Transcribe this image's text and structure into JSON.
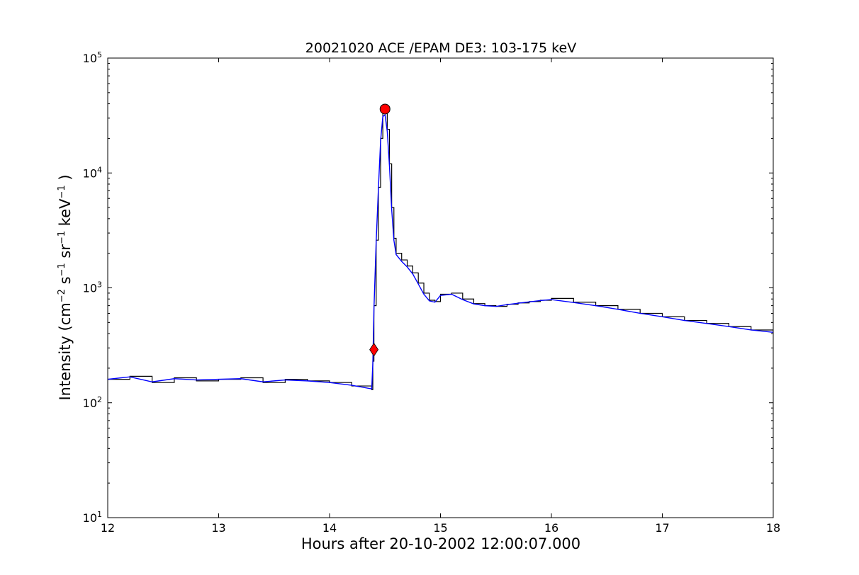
{
  "chart_data": {
    "type": "line",
    "title": "20021020 ACE /EPAM DE3: 103-175 keV",
    "xlabel": "Hours after 20-10-2002 12:00:07.000",
    "ylabel_parts": {
      "pre": "Intensity (cm",
      "sup1": "−2",
      "s": " s",
      "sup2": "−1",
      "sr": " sr",
      "sup3": "−1",
      "kev": " keV",
      "sup4": "−1",
      "post": " )"
    },
    "xlim": [
      12,
      18
    ],
    "ylim": [
      10,
      100000
    ],
    "yscale": "log",
    "x_ticks": [
      "12",
      "13",
      "14",
      "15",
      "16",
      "17",
      "18"
    ],
    "y_ticks": [
      {
        "base": "10",
        "exp": "1"
      },
      {
        "base": "10",
        "exp": "2"
      },
      {
        "base": "10",
        "exp": "3"
      },
      {
        "base": "10",
        "exp": "4"
      },
      {
        "base": "10",
        "exp": "5"
      }
    ],
    "grid": false,
    "series": [
      {
        "style": "steps",
        "color": "#000000",
        "x": [
          12.0,
          12.2,
          12.4,
          12.6,
          12.8,
          13.0,
          13.2,
          13.4,
          13.6,
          13.8,
          14.0,
          14.2,
          14.38,
          14.39,
          14.4,
          14.42,
          14.44,
          14.46,
          14.48,
          14.5,
          14.52,
          14.54,
          14.56,
          14.58,
          14.6,
          14.65,
          14.7,
          14.75,
          14.8,
          14.85,
          14.9,
          14.95,
          15.0,
          15.1,
          15.2,
          15.3,
          15.4,
          15.5,
          15.6,
          15.7,
          15.8,
          15.9,
          16.0,
          16.2,
          16.4,
          16.6,
          16.8,
          17.0,
          17.2,
          17.4,
          17.6,
          17.8,
          18.0
        ],
        "y": [
          160,
          170,
          150,
          165,
          155,
          160,
          165,
          150,
          160,
          155,
          150,
          140,
          130,
          230,
          700,
          2600,
          7500,
          20000,
          33000,
          34000,
          24000,
          12000,
          5000,
          2700,
          2000,
          1750,
          1550,
          1350,
          1100,
          900,
          780,
          760,
          880,
          900,
          800,
          730,
          700,
          690,
          720,
          740,
          760,
          780,
          810,
          750,
          700,
          650,
          600,
          560,
          520,
          490,
          460,
          430,
          410
        ]
      },
      {
        "style": "line",
        "color": "#0000ff",
        "x": [
          12.0,
          12.2,
          12.4,
          12.6,
          12.8,
          13.0,
          13.2,
          13.4,
          13.6,
          13.8,
          14.0,
          14.2,
          14.38,
          14.39,
          14.4,
          14.42,
          14.44,
          14.46,
          14.48,
          14.5,
          14.52,
          14.54,
          14.56,
          14.58,
          14.6,
          14.65,
          14.7,
          14.75,
          14.8,
          14.85,
          14.9,
          14.95,
          15.0,
          15.1,
          15.2,
          15.3,
          15.4,
          15.5,
          15.6,
          15.7,
          15.8,
          15.9,
          16.0,
          16.2,
          16.4,
          16.6,
          16.8,
          17.0,
          17.2,
          17.4,
          17.6,
          17.8,
          18.0
        ],
        "y": [
          160,
          168,
          152,
          162,
          158,
          160,
          162,
          152,
          158,
          155,
          150,
          142,
          132,
          220,
          650,
          2500,
          7200,
          19000,
          31000,
          32000,
          23000,
          11500,
          4800,
          2600,
          1950,
          1700,
          1520,
          1320,
          1080,
          880,
          770,
          750,
          860,
          880,
          790,
          725,
          700,
          690,
          715,
          735,
          755,
          775,
          790,
          745,
          700,
          650,
          600,
          560,
          520,
          490,
          460,
          430,
          410
        ]
      }
    ],
    "markers": [
      {
        "shape": "diamond",
        "color": "#ff0000",
        "x": 14.4,
        "y": 290
      },
      {
        "shape": "circle",
        "color": "#ff0000",
        "x": 14.5,
        "y": 36000
      }
    ]
  }
}
